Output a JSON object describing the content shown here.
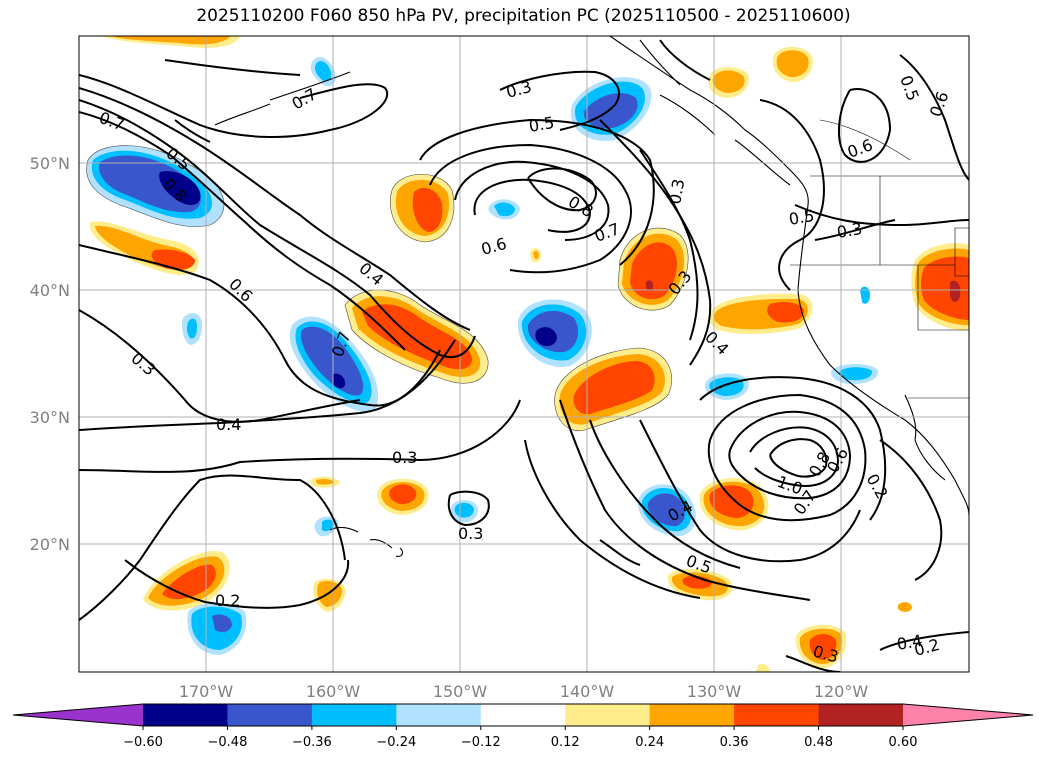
{
  "title": "2025110200 F060 850 hPa PV, precipitation PC (2025110500 - 2025110600)",
  "lat_labels": [
    "50°N",
    "40°N",
    "30°N",
    "20°N"
  ],
  "lon_labels": [
    "170°W",
    "160°W",
    "150°W",
    "140°W",
    "130°W",
    "120°W"
  ],
  "contour_labels": [
    "0.3",
    "0.5",
    "0.7",
    "0.5",
    "0.8",
    "0.7",
    "0.6",
    "0.8",
    "0.7",
    "0.3",
    "0.5",
    "0.3",
    "0.6",
    "0.4",
    "0.6",
    "0.4",
    "0.7",
    "0.3",
    "0.3",
    "0.4",
    "0.4",
    "0.3",
    "0.3",
    "0.4",
    "1.0",
    "0.8",
    "0.7",
    "0.6",
    "0.2",
    "0.5",
    "0.2",
    "0.3",
    "0.2",
    "0.5",
    "0.6"
  ],
  "colorbar": {
    "ticks": [
      "−0.60",
      "−0.48",
      "−0.36",
      "−0.24",
      "−0.12",
      "0.12",
      "0.24",
      "0.36",
      "0.48",
      "0.60"
    ],
    "colors": [
      "#9a32cd",
      "#00008b",
      "#3a56cc",
      "#00bfff",
      "#b0e2ff",
      "#ffffff",
      "#ffec8b",
      "#ffa500",
      "#ff4500",
      "#b22222",
      "#ff82ab"
    ]
  }
}
